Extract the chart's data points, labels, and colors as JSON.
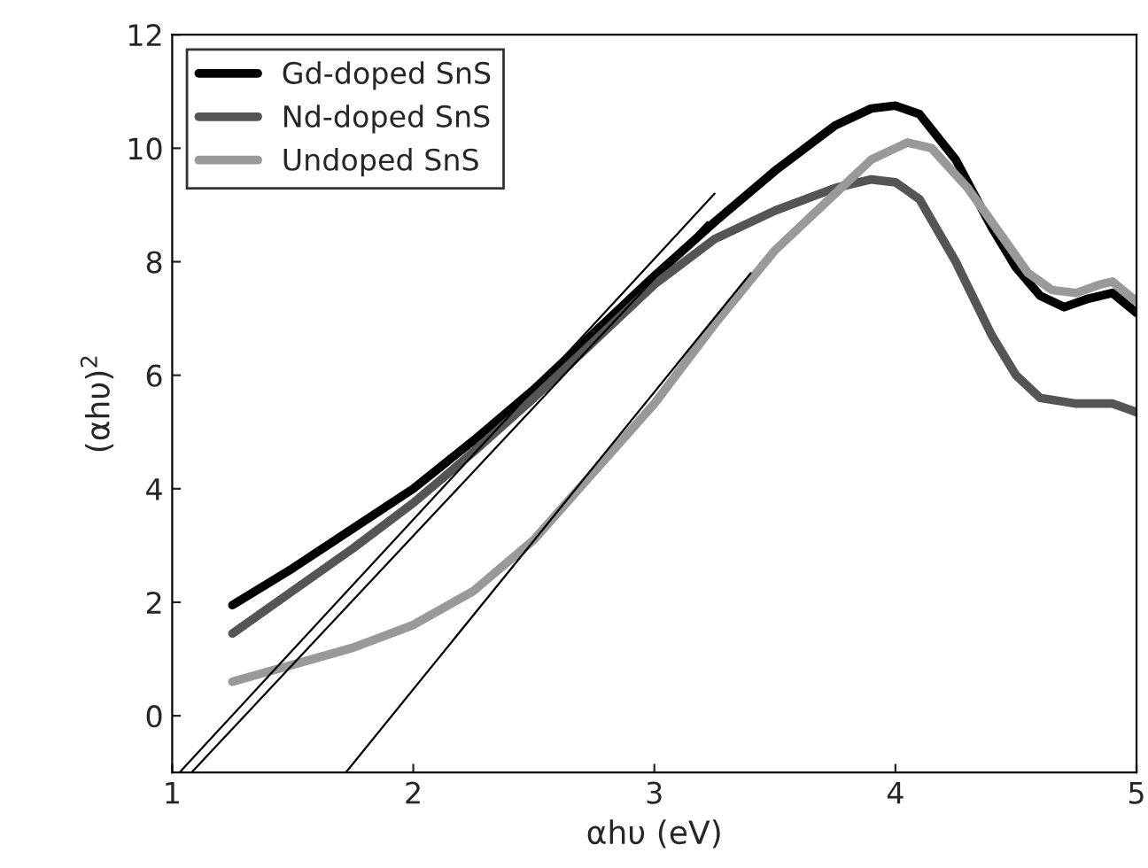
{
  "chart_data": {
    "type": "line",
    "xlabel": "αhυ (eV)",
    "ylabel": "(αhυ)$^{2}$",
    "xlim": [
      1,
      5
    ],
    "ylim": [
      -1,
      12
    ],
    "xticks": [
      1,
      2,
      3,
      4,
      5
    ],
    "yticks": [
      0,
      2,
      4,
      6,
      8,
      10,
      12
    ],
    "grid": false,
    "legend": "top left",
    "marker": "none",
    "line_style": "solid",
    "series": [
      {
        "name": "Gd-doped SnS",
        "color": "#000000",
        "x": [
          1.25,
          1.5,
          1.75,
          2,
          2.25,
          2.5,
          2.75,
          3,
          3.25,
          3.5,
          3.75,
          3.9,
          4.0,
          4.1,
          4.25,
          4.4,
          4.5,
          4.6,
          4.7,
          4.8,
          4.9,
          5
        ],
        "values": [
          1.95,
          2.6,
          3.3,
          4.0,
          4.85,
          5.75,
          6.75,
          7.75,
          8.7,
          9.6,
          10.4,
          10.7,
          10.75,
          10.6,
          9.8,
          8.6,
          7.9,
          7.4,
          7.2,
          7.35,
          7.45,
          7.1
        ]
      },
      {
        "name": "Nd-doped SnS",
        "color": "#555555",
        "x": [
          1.25,
          1.5,
          1.75,
          2,
          2.25,
          2.5,
          2.75,
          3,
          3.25,
          3.5,
          3.75,
          3.9,
          4,
          4.1,
          4.25,
          4.4,
          4.5,
          4.6,
          4.75,
          4.9,
          5
        ],
        "values": [
          1.45,
          2.2,
          2.95,
          3.75,
          4.65,
          5.6,
          6.6,
          7.6,
          8.4,
          8.9,
          9.3,
          9.45,
          9.4,
          9.1,
          8.0,
          6.7,
          6.0,
          5.6,
          5.5,
          5.5,
          5.35
        ]
      },
      {
        "name": "Undoped SnS",
        "color": "#999999",
        "x": [
          1.25,
          1.5,
          1.75,
          2,
          2.25,
          2.5,
          2.75,
          3,
          3.25,
          3.5,
          3.75,
          3.9,
          4.05,
          4.15,
          4.3,
          4.45,
          4.55,
          4.65,
          4.75,
          4.85,
          4.9,
          5
        ],
        "values": [
          0.6,
          0.9,
          1.2,
          1.6,
          2.2,
          3.1,
          4.3,
          5.5,
          6.9,
          8.2,
          9.2,
          9.8,
          10.1,
          10.0,
          9.3,
          8.4,
          7.8,
          7.5,
          7.45,
          7.6,
          7.65,
          7.3
        ]
      },
      {
        "color": "#000000",
        "x": [
          1.03,
          3.25
        ],
        "values": [
          -1,
          9.2
        ]
      },
      {
        "color": "#000000",
        "x": [
          1.08,
          3.22
        ],
        "values": [
          -1,
          8.7
        ]
      },
      {
        "color": "#000000",
        "x": [
          1.72,
          3.4
        ],
        "values": [
          -1,
          7.8
        ]
      }
    ]
  }
}
